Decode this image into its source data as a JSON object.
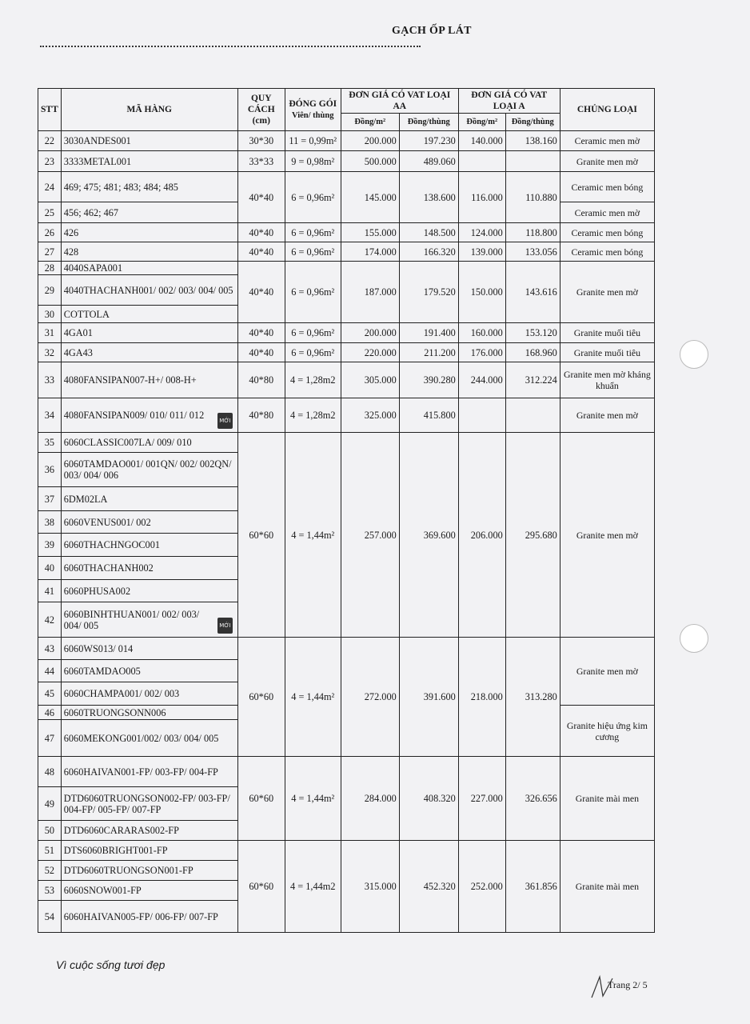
{
  "title": "GẠCH ỐP LÁT",
  "headers": {
    "stt": "STT",
    "code": "MÃ HÀNG",
    "spec": "QUY CÁCH",
    "spec_unit": "(cm)",
    "pack": "ĐÓNG GÓI",
    "pack_unit": "Viên/ thùng",
    "aa": "ĐƠN GIÁ CÓ VAT LOẠI AA",
    "a": "ĐƠN GIÁ CÓ VAT LOẠI A",
    "per_m2": "Đồng/m²",
    "per_box": "Đồng/thùng",
    "type": "CHỦNG LOẠI"
  },
  "badge_label": "MỚI",
  "rows": [
    {
      "stt": "22",
      "code": "3030ANDES001"
    },
    {
      "stt": "23",
      "code": "3333METAL001"
    },
    {
      "stt": "24",
      "code": "469; 475; 481; 483; 484; 485"
    },
    {
      "stt": "25",
      "code": "456; 462; 467"
    },
    {
      "stt": "26",
      "code": "426"
    },
    {
      "stt": "27",
      "code": "428"
    },
    {
      "stt": "28",
      "code": "4040SAPA001"
    },
    {
      "stt": "29",
      "code": "4040THACHANH001/ 002/ 003/ 004/ 005"
    },
    {
      "stt": "30",
      "code": "COTTOLA"
    },
    {
      "stt": "31",
      "code": "4GA01"
    },
    {
      "stt": "32",
      "code": "4GA43"
    },
    {
      "stt": "33",
      "code": "4080FANSIPAN007-H+/ 008-H+"
    },
    {
      "stt": "34",
      "code": "4080FANSIPAN009/ 010/ 011/ 012",
      "new": true
    },
    {
      "stt": "35",
      "code": "6060CLASSIC007LA/ 009/ 010"
    },
    {
      "stt": "36",
      "code": "6060TAMDAO001/ 001QN/ 002/ 002QN/ 003/ 004/ 006"
    },
    {
      "stt": "37",
      "code": "6DM02LA"
    },
    {
      "stt": "38",
      "code": "6060VENUS001/ 002"
    },
    {
      "stt": "39",
      "code": "6060THACHNGOC001"
    },
    {
      "stt": "40",
      "code": "6060THACHANH002"
    },
    {
      "stt": "41",
      "code": "6060PHUSA002"
    },
    {
      "stt": "42",
      "code": "6060BINHTHUAN001/ 002/ 003/ 004/ 005",
      "new": true
    },
    {
      "stt": "43",
      "code": "6060WS013/ 014"
    },
    {
      "stt": "44",
      "code": "6060TAMDAO005"
    },
    {
      "stt": "45",
      "code": "6060CHAMPA001/ 002/ 003"
    },
    {
      "stt": "46",
      "code": "6060TRUONGSONN006"
    },
    {
      "stt": "47",
      "code": "6060MEKONG001/002/ 003/ 004/ 005"
    },
    {
      "stt": "48",
      "code": "6060HAIVAN001-FP/ 003-FP/ 004-FP"
    },
    {
      "stt": "49",
      "code": "DTD6060TRUONGSON002-FP/ 003-FP/ 004-FP/ 005-FP/ 007-FP"
    },
    {
      "stt": "50",
      "code": "DTD6060CARARAS002-FP"
    },
    {
      "stt": "51",
      "code": "DTS6060BRIGHT001-FP"
    },
    {
      "stt": "52",
      "code": "DTD6060TRUONGSON001-FP"
    },
    {
      "stt": "53",
      "code": "6060SNOW001-FP"
    },
    {
      "stt": "54",
      "code": "6060HAIVAN005-FP/ 006-FP/ 007-FP"
    }
  ],
  "price_groups": [
    {
      "count": 1,
      "spec": "30*30",
      "pack": "11 = 0,99m²",
      "aa_m2": "200.000",
      "aa_box": "197.230",
      "a_m2": "140.000",
      "a_box": "138.160"
    },
    {
      "count": 1,
      "spec": "33*33",
      "pack": "9 = 0,98m²",
      "aa_m2": "500.000",
      "aa_box": "489.060",
      "a_m2": "",
      "a_box": ""
    },
    {
      "count": 2,
      "spec": "40*40",
      "pack": "6 = 0,96m²",
      "aa_m2": "145.000",
      "aa_box": "138.600",
      "a_m2": "116.000",
      "a_box": "110.880"
    },
    {
      "count": 1,
      "spec": "40*40",
      "pack": "6 = 0,96m²",
      "aa_m2": "155.000",
      "aa_box": "148.500",
      "a_m2": "124.000",
      "a_box": "118.800"
    },
    {
      "count": 1,
      "spec": "40*40",
      "pack": "6 = 0,96m²",
      "aa_m2": "174.000",
      "aa_box": "166.320",
      "a_m2": "139.000",
      "a_box": "133.056"
    },
    {
      "count": 3,
      "spec": "40*40",
      "pack": "6 = 0,96m²",
      "aa_m2": "187.000",
      "aa_box": "179.520",
      "a_m2": "150.000",
      "a_box": "143.616"
    },
    {
      "count": 1,
      "spec": "40*40",
      "pack": "6 = 0,96m²",
      "aa_m2": "200.000",
      "aa_box": "191.400",
      "a_m2": "160.000",
      "a_box": "153.120"
    },
    {
      "count": 1,
      "spec": "40*40",
      "pack": "6 = 0,96m²",
      "aa_m2": "220.000",
      "aa_box": "211.200",
      "a_m2": "176.000",
      "a_box": "168.960"
    },
    {
      "count": 1,
      "spec": "40*80",
      "pack": "4 = 1,28m2",
      "aa_m2": "305.000",
      "aa_box": "390.280",
      "a_m2": "244.000",
      "a_box": "312.224"
    },
    {
      "count": 1,
      "spec": "40*80",
      "pack": "4 = 1,28m2",
      "aa_m2": "325.000",
      "aa_box": "415.800",
      "a_m2": "",
      "a_box": ""
    },
    {
      "count": 8,
      "spec": "60*60",
      "pack": "4 = 1,44m²",
      "aa_m2": "257.000",
      "aa_box": "369.600",
      "a_m2": "206.000",
      "a_box": "295.680"
    },
    {
      "count": 5,
      "spec": "60*60",
      "pack": "4 = 1,44m²",
      "aa_m2": "272.000",
      "aa_box": "391.600",
      "a_m2": "218.000",
      "a_box": "313.280"
    },
    {
      "count": 3,
      "spec": "60*60",
      "pack": "4 = 1,44m²",
      "aa_m2": "284.000",
      "aa_box": "408.320",
      "a_m2": "227.000",
      "a_box": "326.656"
    },
    {
      "count": 4,
      "spec": "60*60",
      "pack": "4 = 1,44m2",
      "aa_m2": "315.000",
      "aa_box": "452.320",
      "a_m2": "252.000",
      "a_box": "361.856"
    }
  ],
  "type_groups": [
    {
      "count": 1,
      "label": "Ceramic men mờ"
    },
    {
      "count": 1,
      "label": "Granite men mờ"
    },
    {
      "count": 1,
      "label": "Ceramic men bóng"
    },
    {
      "count": 1,
      "label": "Ceramic men mờ"
    },
    {
      "count": 1,
      "label": "Ceramic men bóng"
    },
    {
      "count": 1,
      "label": "Ceramic men bóng"
    },
    {
      "count": 3,
      "label": "Granite men mờ"
    },
    {
      "count": 1,
      "label": "Granite muối tiêu"
    },
    {
      "count": 1,
      "label": "Granite muối tiêu"
    },
    {
      "count": 1,
      "label": "Granite men mờ kháng khuẩn"
    },
    {
      "count": 1,
      "label": "Granite men mờ"
    },
    {
      "count": 8,
      "label": "Granite men mờ"
    },
    {
      "count": 3,
      "label": "Granite men mờ"
    },
    {
      "count": 2,
      "label": "Granite hiệu ứng kim cương"
    },
    {
      "count": 3,
      "label": "Granite mài men"
    },
    {
      "count": 4,
      "label": "Granite mài men"
    }
  ],
  "footer": {
    "slogan": "Vì cuộc sống tươi đẹp",
    "page": "Trang 2/ 5"
  }
}
